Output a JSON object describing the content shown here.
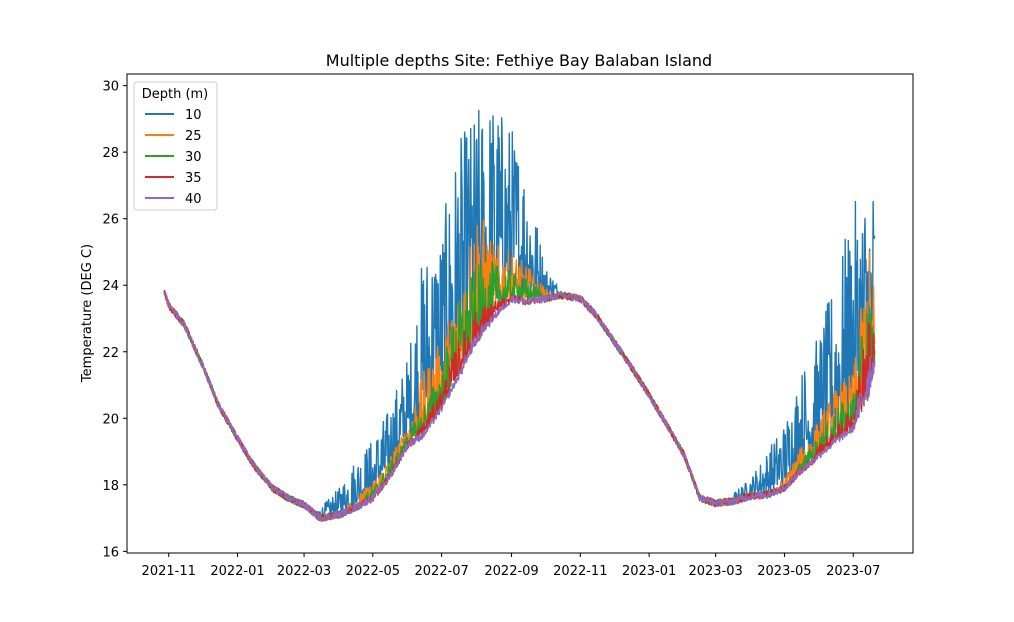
{
  "chart_data": {
    "type": "line",
    "title": "Multiple depths Site: Fethiye Bay Balaban Island",
    "xlabel": "",
    "ylabel": "Temperature (DEG C)",
    "ylim": [
      15.95,
      30.35
    ],
    "xlim": [
      "2021-09-25",
      "2023-08-23"
    ],
    "grid": false,
    "legend": {
      "title": "Depth (m)",
      "placement": "top-left"
    },
    "y_ticks": [
      16,
      18,
      20,
      22,
      24,
      26,
      28,
      30
    ],
    "x_ticks": [
      "2021-11",
      "2022-01",
      "2022-03",
      "2022-05",
      "2022-07",
      "2022-09",
      "2022-11",
      "2023-01",
      "2023-03",
      "2023-05",
      "2023-07"
    ],
    "baseline": {
      "dates": [
        "2021-10-28",
        "2021-11-01",
        "2021-11-15",
        "2021-12-01",
        "2021-12-15",
        "2022-01-01",
        "2022-01-15",
        "2022-02-01",
        "2022-02-15",
        "2022-03-01",
        "2022-03-15",
        "2022-04-01",
        "2022-04-15",
        "2022-05-01",
        "2022-05-15",
        "2022-06-01",
        "2022-06-15",
        "2022-07-01",
        "2022-07-15",
        "2022-08-01",
        "2022-08-15",
        "2022-09-01",
        "2022-09-15",
        "2022-10-01",
        "2022-10-15",
        "2022-11-01",
        "2022-11-15",
        "2022-12-01",
        "2022-12-15",
        "2023-01-01",
        "2023-01-15",
        "2023-02-01",
        "2023-02-15",
        "2023-03-01",
        "2023-03-15",
        "2023-04-01",
        "2023-04-15",
        "2023-05-01",
        "2023-05-15",
        "2023-06-01",
        "2023-06-15",
        "2023-07-01",
        "2023-07-15",
        "2023-07-20"
      ],
      "values": [
        23.8,
        23.4,
        22.8,
        21.6,
        20.4,
        19.4,
        18.6,
        17.9,
        17.6,
        17.4,
        17.0,
        17.1,
        17.3,
        17.6,
        18.2,
        19.2,
        19.5,
        20.3,
        21.2,
        22.2,
        23.0,
        23.6,
        23.5,
        23.6,
        23.7,
        23.6,
        23.1,
        22.3,
        21.6,
        20.7,
        19.9,
        18.9,
        17.6,
        17.45,
        17.5,
        17.65,
        17.7,
        17.9,
        18.4,
        18.9,
        19.3,
        19.7,
        20.6,
        21.5
      ]
    },
    "series": [
      {
        "name": "10",
        "color": "#1f77b4",
        "upper": [
          23.8,
          23.4,
          22.8,
          21.6,
          20.4,
          19.4,
          18.6,
          17.9,
          17.6,
          17.4,
          17.3,
          17.9,
          18.8,
          19.4,
          20.3,
          21.9,
          25.1,
          25.8,
          28.3,
          29.4,
          29.7,
          28.9,
          27.5,
          24.6,
          23.9,
          23.6,
          23.1,
          22.3,
          21.6,
          20.7,
          19.9,
          18.9,
          17.6,
          17.5,
          17.7,
          18.2,
          19.0,
          19.9,
          21.4,
          22.6,
          24.3,
          26.4,
          27.3,
          27.3
        ]
      },
      {
        "name": "25",
        "color": "#ff7f0e",
        "upper": [
          23.8,
          23.4,
          22.8,
          21.6,
          20.4,
          19.4,
          18.6,
          17.9,
          17.6,
          17.4,
          17.1,
          17.3,
          17.6,
          18.1,
          18.8,
          19.8,
          21.4,
          22.4,
          23.8,
          26.6,
          25.3,
          25.0,
          24.6,
          23.9,
          23.8,
          23.6,
          23.1,
          22.3,
          21.6,
          20.7,
          19.9,
          18.9,
          17.6,
          17.45,
          17.55,
          17.7,
          17.8,
          18.2,
          19.1,
          20.0,
          20.9,
          21.4,
          25.3,
          24.0
        ]
      },
      {
        "name": "30",
        "color": "#2ca02c",
        "upper": [
          23.7,
          23.4,
          22.8,
          21.6,
          20.4,
          19.4,
          18.6,
          17.9,
          17.6,
          17.4,
          17.05,
          17.2,
          17.5,
          17.9,
          18.6,
          19.5,
          20.4,
          21.6,
          23.5,
          24.6,
          24.7,
          24.4,
          24.2,
          23.8,
          23.7,
          23.6,
          23.1,
          22.3,
          21.6,
          20.7,
          19.9,
          18.9,
          17.6,
          17.4,
          17.5,
          17.65,
          17.7,
          18.0,
          18.7,
          19.5,
          20.3,
          20.8,
          24.0,
          22.8
        ]
      },
      {
        "name": "35",
        "color": "#d62728",
        "upper": [
          23.6,
          23.4,
          22.8,
          21.6,
          20.4,
          19.4,
          18.6,
          17.9,
          17.6,
          17.4,
          17.0,
          17.15,
          17.4,
          17.8,
          18.4,
          19.3,
          19.9,
          20.9,
          22.3,
          23.3,
          23.5,
          23.7,
          23.6,
          23.7,
          23.6,
          23.6,
          23.1,
          22.3,
          21.6,
          20.7,
          19.9,
          18.9,
          17.6,
          17.4,
          17.5,
          17.65,
          17.7,
          17.9,
          18.5,
          19.2,
          19.7,
          20.3,
          23.2,
          22.4
        ]
      },
      {
        "name": "40",
        "color": "#9467bd",
        "upper": [
          23.4,
          23.3,
          22.8,
          21.6,
          20.4,
          19.4,
          18.6,
          17.9,
          17.6,
          17.4,
          17.0,
          17.1,
          17.3,
          17.6,
          18.2,
          19.1,
          19.6,
          20.4,
          21.4,
          22.6,
          23.2,
          23.5,
          23.5,
          23.6,
          23.7,
          23.6,
          23.1,
          22.3,
          21.6,
          20.7,
          19.9,
          18.9,
          17.6,
          17.4,
          17.5,
          17.6,
          17.7,
          17.85,
          18.3,
          18.9,
          19.3,
          19.8,
          22.4,
          21.8
        ]
      }
    ]
  }
}
